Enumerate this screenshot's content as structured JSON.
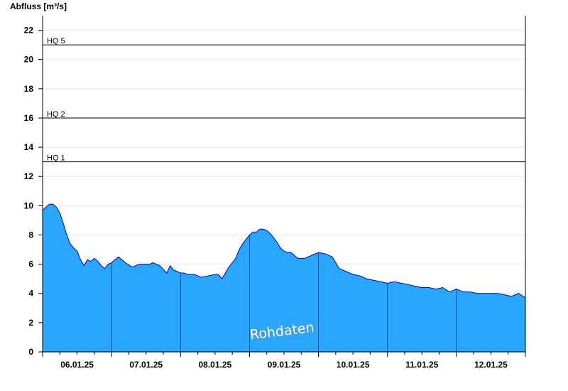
{
  "chart_data": {
    "type": "area",
    "ylabel": "Abfluss [m³/s]",
    "ylim": [
      0,
      23
    ],
    "yticks": [
      0,
      2,
      4,
      6,
      8,
      10,
      12,
      14,
      16,
      18,
      20,
      22
    ],
    "grid": true,
    "x_days": [
      "06.01.25",
      "07.01.25",
      "08.01.25",
      "09.01.25",
      "10.01.25",
      "11.01.25",
      "12.01.25"
    ],
    "xlim_days": [
      -0.5,
      6.5
    ],
    "fill_color": "#29a6ff",
    "line_color": "#0000c0",
    "thresholds": [
      {
        "label": "HQ 1",
        "value": 13.0
      },
      {
        "label": "HQ 2",
        "value": 16.0
      },
      {
        "label": "HQ 5",
        "value": 21.0
      }
    ],
    "watermark": "Rohdaten",
    "series": [
      {
        "x": [
          -0.5,
          -0.4,
          -0.35,
          -0.3,
          -0.25,
          -0.2,
          -0.15,
          -0.1,
          -0.05,
          0.0,
          0.05,
          0.1,
          0.15,
          0.2,
          0.25,
          0.3,
          0.35,
          0.4,
          0.45,
          0.5,
          0.55,
          0.6,
          0.7,
          0.8,
          0.9,
          1.0,
          1.05,
          1.1,
          1.2,
          1.3,
          1.35,
          1.4,
          1.45,
          1.5,
          1.55,
          1.6,
          1.65,
          1.7,
          1.8,
          1.9,
          2.0,
          2.05,
          2.1,
          2.15,
          2.2,
          2.25,
          2.3,
          2.35,
          2.4,
          2.5,
          2.55,
          2.6,
          2.65,
          2.7,
          2.75,
          2.8,
          2.85,
          2.9,
          2.95,
          3.0,
          3.05,
          3.1,
          3.15,
          3.2,
          3.3,
          3.4,
          3.5,
          3.6,
          3.7,
          3.8,
          3.9,
          4.0,
          4.1,
          4.2,
          4.3,
          4.4,
          4.5,
          4.6,
          4.7,
          4.8,
          4.9,
          5.0,
          5.1,
          5.2,
          5.3,
          5.4,
          5.5,
          5.6,
          5.7,
          5.8,
          5.9,
          6.0,
          6.1,
          6.2,
          6.3,
          6.4,
          6.5
        ],
        "y": [
          9.7,
          10.1,
          10.1,
          9.9,
          9.5,
          8.8,
          8.0,
          7.4,
          7.1,
          6.9,
          6.3,
          5.9,
          6.3,
          6.2,
          6.4,
          6.2,
          5.9,
          5.7,
          6.0,
          6.1,
          6.3,
          6.5,
          6.1,
          5.8,
          6.0,
          6.0,
          6.0,
          6.1,
          5.9,
          5.4,
          5.9,
          5.6,
          5.5,
          5.4,
          5.4,
          5.3,
          5.3,
          5.3,
          5.1,
          5.2,
          5.3,
          5.3,
          5.0,
          5.4,
          5.8,
          6.1,
          6.4,
          7.0,
          7.4,
          8.0,
          8.2,
          8.2,
          8.4,
          8.4,
          8.3,
          8.1,
          7.8,
          7.5,
          7.1,
          6.9,
          6.8,
          6.8,
          6.6,
          6.4,
          6.4,
          6.6,
          6.8,
          6.7,
          6.5,
          5.7,
          5.5,
          5.3,
          5.2,
          5.0,
          4.9,
          4.8,
          4.7,
          4.8,
          4.7,
          4.6,
          4.5,
          4.4,
          4.4,
          4.3,
          4.4,
          4.1,
          4.3,
          4.1,
          4.1,
          4.0,
          4.0,
          4.0,
          4.0,
          3.9,
          3.8,
          4.0,
          3.7
        ]
      }
    ]
  }
}
